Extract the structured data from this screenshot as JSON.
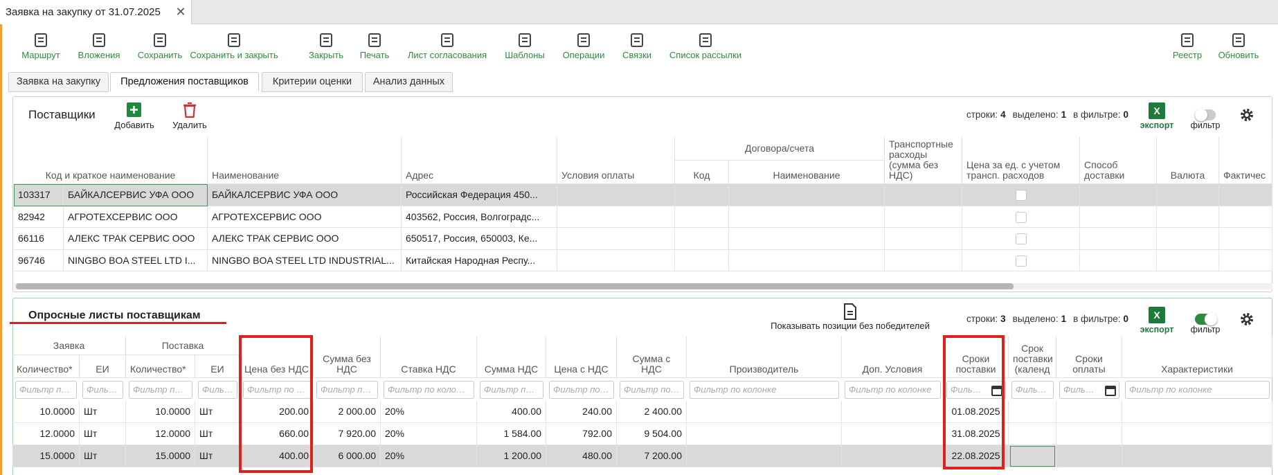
{
  "window_tab": {
    "title": "Заявка на закупку от 31.07.2025"
  },
  "toolbar": {
    "left": [
      "Маршрут",
      "Вложения",
      "Сохранить",
      "Сохранить и закрыть",
      "Закрыть",
      "Печать",
      "Лист согласования",
      "Шаблоны",
      "Операции",
      "Связки",
      "Список рассылки"
    ],
    "right": [
      "Реестр",
      "Обновить"
    ]
  },
  "tabs": {
    "items": [
      "Заявка на закупку",
      "Предложения поставщиков",
      "Критерии оценки",
      "Анализ данных"
    ],
    "active": 1
  },
  "suppliers": {
    "title": "Поставщики",
    "actions": [
      "Добавить",
      "Удалить"
    ],
    "stats": [
      {
        "label": "строки:",
        "value": "4"
      },
      {
        "label": "выделено:",
        "value": "1"
      },
      {
        "label": "в фильтре:",
        "value": "0"
      }
    ],
    "export": "экспорт",
    "filter": "фильтр",
    "filter_on": false,
    "table": {
      "headers": [
        "Код и краткое наименование",
        "Наименование",
        "Адрес",
        "Условия оплаты",
        "Договора/счета",
        "Код",
        "Наименование",
        "Транспортные расходы (сумма без НДС)",
        "Цена за ед. с учетом трансп. расходов",
        "Способ доставки",
        "Валюта",
        "Фактичес"
      ],
      "rows": [
        [
          "103317",
          "БАЙКАЛСЕРВИС УФА ООО",
          "БАЙКАЛСЕРВИС УФА ООО",
          "Российская Федерация 450..."
        ],
        [
          "82942",
          "АГРОТЕХСЕРВИС ООО",
          "АГРОТЕХСЕРВИС ООО",
          "403562, Россия, Волгоградс..."
        ],
        [
          "66116",
          "АЛЕКС ТРАК СЕРВИС ООО",
          "АЛЕКС ТРАК СЕРВИС ООО",
          "650517, Россия, 650003, Ке..."
        ],
        [
          "96746",
          "NINGBO BOA STEEL LTD I...",
          "NINGBO BOA STEEL LTD INDUSTRIAL...",
          "Китайская Народная Респу..."
        ]
      ],
      "selected_row": 0
    }
  },
  "rfq": {
    "title": "Опросные листы поставщикам",
    "show_toggle": "Показывать позиции без победителей",
    "stats": [
      {
        "label": "строки:",
        "value": "3"
      },
      {
        "label": "выделено:",
        "value": "1"
      },
      {
        "label": "в фильтре:",
        "value": "0"
      }
    ],
    "export": "экспорт",
    "filter": "фильтр",
    "filter_on": true,
    "table": {
      "headers": [
        "Заявка",
        "Поставка",
        "Количество*",
        "ЕИ",
        "Количество*",
        "ЕИ",
        "Цена без НДС",
        "Сумма без НДС",
        "Ставка НДС",
        "Сумма НДС",
        "Цена с НДС",
        "Сумма с НДС",
        "Производитель",
        "Доп. Условия",
        "Сроки поставки",
        "Срок поставки (календ",
        "Сроки оплаты",
        "Характеристики"
      ],
      "filter_placeholder": "Фильтр по колонке",
      "rows": [
        {
          "cells": [
            "10.0000",
            "Шт",
            "10.0000",
            "Шт",
            "200.00",
            "2 000.00",
            "20%",
            "400.00",
            "240.00",
            "2 400.00"
          ],
          "delivery_date": "01.08.2025"
        },
        {
          "cells": [
            "12.0000",
            "Шт",
            "12.0000",
            "Шт",
            "660.00",
            "7 920.00",
            "20%",
            "1 584.00",
            "792.00",
            "9 504.00"
          ],
          "delivery_date": "31.08.2025"
        },
        {
          "cells": [
            "15.0000",
            "Шт",
            "15.0000",
            "Шт",
            "400.00",
            "6 000.00",
            "20%",
            "1 200.00",
            "480.00",
            "7 200.00"
          ],
          "delivery_date": "22.08.2025"
        }
      ],
      "selected_row": 2
    }
  }
}
